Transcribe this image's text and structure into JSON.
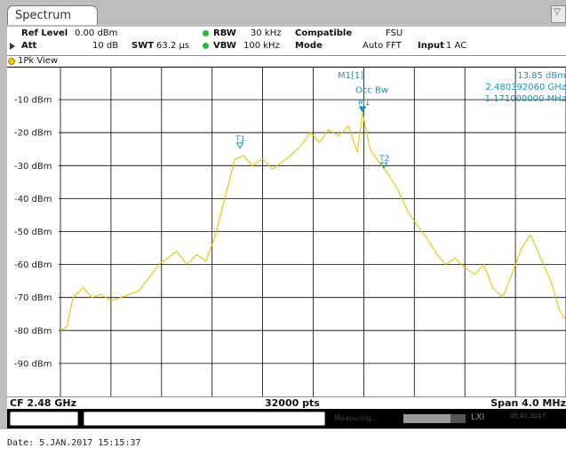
{
  "tab": {
    "label": "Spectrum"
  },
  "corner_button": {
    "icon": "window-menu-icon"
  },
  "settings": {
    "ref_level_label": "Ref Level",
    "ref_level_value": "0.00 dBm",
    "att_label": "Att",
    "att_value": "10 dB",
    "swt_label": "SWT",
    "swt_value": "63.2 µs",
    "rbw_label": "RBW",
    "rbw_value": "30 kHz",
    "vbw_label": "VBW",
    "vbw_value": "100 kHz",
    "compatible_label": "Compatible",
    "compatible_value": "FSU",
    "mode_label": "Mode",
    "mode_value": "Auto FFT",
    "input_label": "Input",
    "input_value": "1 AC"
  },
  "view": {
    "label": "1Pk View"
  },
  "plot": {
    "y_labels": [
      "-10 dBm",
      "-20 dBm",
      "-30 dBm",
      "-40 dBm",
      "-50 dBm",
      "-60 dBm",
      "-70 dBm",
      "-80 dBm",
      "-90 dBm"
    ],
    "markers": {
      "m1": "M1",
      "t1": "T1",
      "t2": "T2"
    },
    "occ_bw_label": "Occ Bw",
    "readout": {
      "name": "M1[1]",
      "level": "-13.85 dBm",
      "freq": "2.480392060 GHz",
      "bw": "1.171000000 MHz"
    }
  },
  "chart_data": {
    "type": "line",
    "y_unit": "dBm",
    "ylim": [
      -100,
      0
    ],
    "x_unit": "GHz",
    "x_center": 2.48,
    "x_span_mhz": 4.0,
    "x": [
      2.478,
      2.47805,
      2.4781,
      2.47818,
      2.47825,
      2.47832,
      2.4784,
      2.47848,
      2.47855,
      2.47862,
      2.4787,
      2.47878,
      2.47885,
      2.47892,
      2.479,
      2.47908,
      2.47915,
      2.47922,
      2.4793,
      2.47938,
      2.47945,
      2.47952,
      2.4796,
      2.47968,
      2.47975,
      2.47982,
      2.4799,
      2.47998,
      2.48005,
      2.48012,
      2.4802,
      2.48028,
      2.48035,
      2.48039,
      2.48045,
      2.48052,
      2.4806,
      2.48068,
      2.48075,
      2.48082,
      2.4809,
      2.48098,
      2.48105,
      2.48112,
      2.4812,
      2.48128,
      2.48135,
      2.48142,
      2.4815,
      2.48158,
      2.48165,
      2.48172,
      2.4818,
      2.48188,
      2.48195,
      2.482
    ],
    "y": [
      -80,
      -79,
      -70,
      -67,
      -70,
      -69,
      -71,
      -70,
      -69,
      -68,
      -64,
      -60,
      -58,
      -56,
      -60,
      -57,
      -59,
      -52,
      -40,
      -28,
      -27,
      -30,
      -28,
      -31,
      -29,
      -27,
      -24,
      -20,
      -23,
      -19,
      -21,
      -18,
      -26,
      -14,
      -25,
      -29,
      -33,
      -38,
      -44,
      -48,
      -52,
      -57,
      -60,
      -58,
      -61,
      -63,
      -60,
      -67,
      -70,
      -62,
      -55,
      -51,
      -58,
      -65,
      -74,
      -77
    ],
    "y_tick_labels": [
      "-10 dBm",
      "-20 dBm",
      "-30 dBm",
      "-40 dBm",
      "-50 dBm",
      "-60 dBm",
      "-70 dBm",
      "-80 dBm",
      "-90 dBm"
    ],
    "trace_color": "#e5c800",
    "marker_color": "#1a95bd",
    "grid": true,
    "markers": [
      {
        "name": "M1",
        "x": 2.48039,
        "y": -14
      },
      {
        "name": "T1",
        "x": 2.47942,
        "y": -25
      },
      {
        "name": "T2",
        "x": 2.48056,
        "y": -31
      }
    ]
  },
  "footer": {
    "cf": "CF 2.48 GHz",
    "pts": "32000 pts",
    "span": "Span 4.0 MHz"
  },
  "status": {
    "state": "Measuring...",
    "progress": 0.75,
    "icon": "lxi-icon",
    "icon_text": "LXI",
    "date_small": "05.01.2017"
  },
  "date_line": "Date: 5.JAN.2017  15:15:37"
}
